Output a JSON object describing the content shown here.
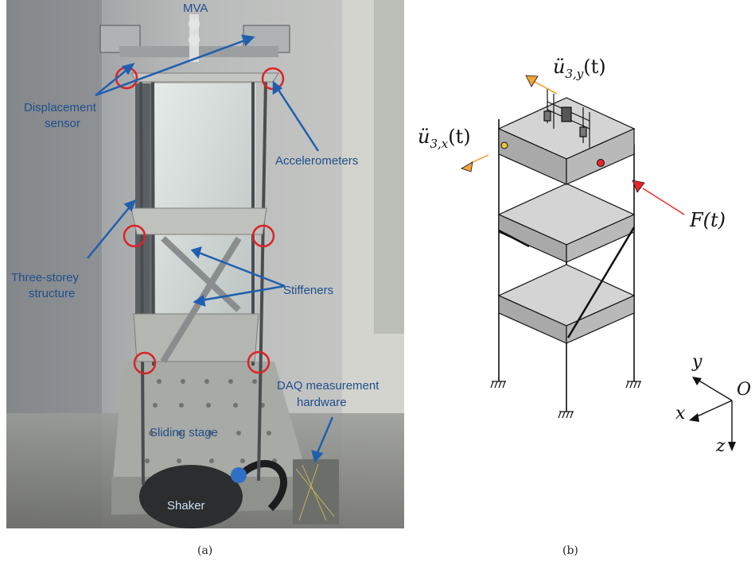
{
  "photo": {
    "labels": {
      "mva": "MVA",
      "displacement_sensor_line1": "Displacement",
      "displacement_sensor_line2": "sensor",
      "accelerometers": "Accelerometers",
      "three_storey_line1": "Three-storey",
      "three_storey_line2": "structure",
      "stiffeners": "Stiffeners",
      "daq_line1": "DAQ measurement",
      "daq_line2": "hardware",
      "sliding_stage": "Sliding stage",
      "shaker": "Shaker"
    },
    "caption": "(a)"
  },
  "diagram": {
    "labels": {
      "accel_y_base": "ü",
      "accel_y_sub": "3,y",
      "accel_y_arg": "(t)",
      "accel_x_base": "ü",
      "accel_x_sub": "3,x",
      "accel_x_arg": "(t)",
      "force": "F(t)",
      "axis_y": "y",
      "axis_x": "x",
      "axis_z": "z",
      "origin": "O"
    },
    "caption": "(b)",
    "colors": {
      "accel_marker": "#f2a33a",
      "force_marker": "#e8262a",
      "slab": "#d4d4d4"
    }
  }
}
